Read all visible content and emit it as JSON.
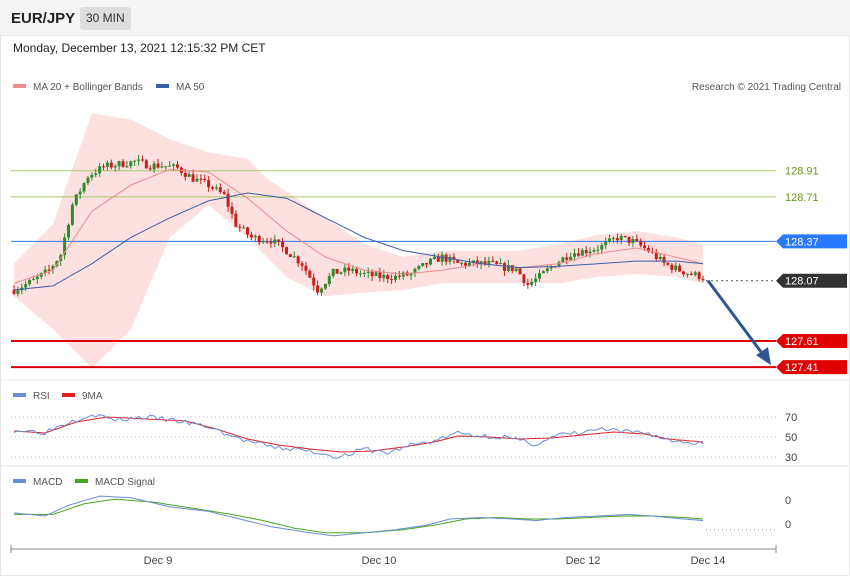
{
  "header": {
    "pair": "EUR/JPY",
    "timeframe": "30 MIN",
    "timestamp": "Monday, December 13, 2021 12:15:32 PM CET"
  },
  "colors": {
    "bb_fill": "#fde0e0",
    "ma20": "#f08a8a",
    "ma50": "#3b5ea8",
    "resistance_green": "#a6c86a",
    "pivot_blue": "#2979ff",
    "support_red": "#e00000",
    "last_price": "#333333",
    "arrow": "#2f5597",
    "candle_up": "#2e8b2e",
    "candle_down": "#c81e1e",
    "rsi": "#6b8bd6",
    "rsi_ma": "#e02020",
    "macd": "#6b8bd6",
    "macd_signal": "#4aa51c"
  },
  "chart_data": [
    {
      "type": "candlestick",
      "name": "price",
      "legend": [
        {
          "label": "MA 20 + Bollinger Bands",
          "color": "#f08a8a"
        },
        {
          "label": "MA 50",
          "color": "#3b5ea8"
        }
      ],
      "copyright": "Research © 2021 Trading Central",
      "ylim": [
        127.35,
        129.45
      ],
      "x_ticks": [
        "Dec 9",
        "Dec 10",
        "Dec 12",
        "Dec 14"
      ],
      "levels": [
        {
          "value": 128.91,
          "label": "128.91",
          "style": "resistance"
        },
        {
          "value": 128.71,
          "label": "128.71",
          "style": "resistance"
        },
        {
          "value": 128.37,
          "label": "128.37",
          "style": "pivot"
        },
        {
          "value": 128.07,
          "label": "128.07",
          "style": "last"
        },
        {
          "value": 127.61,
          "label": "127.61",
          "style": "support"
        },
        {
          "value": 127.41,
          "label": "127.41",
          "style": "support"
        }
      ],
      "close_keypoints": [
        [
          0,
          128.0
        ],
        [
          5,
          128.07
        ],
        [
          9,
          128.15
        ],
        [
          12,
          128.27
        ],
        [
          15,
          128.65
        ],
        [
          19,
          128.87
        ],
        [
          23,
          128.94
        ],
        [
          27,
          128.96
        ],
        [
          31,
          128.98
        ],
        [
          35,
          128.95
        ],
        [
          38,
          128.95
        ],
        [
          42,
          128.93
        ],
        [
          46,
          128.85
        ],
        [
          50,
          128.8
        ],
        [
          54,
          128.72
        ],
        [
          57,
          128.5
        ],
        [
          61,
          128.4
        ],
        [
          66,
          128.38
        ],
        [
          70,
          128.3
        ],
        [
          74,
          128.2
        ],
        [
          78,
          128.0
        ],
        [
          82,
          128.13
        ],
        [
          86,
          128.15
        ],
        [
          90,
          128.12
        ],
        [
          94,
          128.1
        ],
        [
          98,
          128.1
        ],
        [
          102,
          128.12
        ],
        [
          106,
          128.2
        ],
        [
          110,
          128.25
        ],
        [
          114,
          128.2
        ],
        [
          118,
          128.2
        ],
        [
          122,
          128.2
        ],
        [
          126,
          128.17
        ],
        [
          129,
          128.16
        ],
        [
          132,
          128.04
        ],
        [
          135,
          128.1
        ],
        [
          139,
          128.2
        ],
        [
          143,
          128.28
        ],
        [
          147,
          128.3
        ],
        [
          151,
          128.33
        ],
        [
          155,
          128.4
        ],
        [
          159,
          128.37
        ],
        [
          163,
          128.3
        ],
        [
          167,
          128.2
        ],
        [
          171,
          128.15
        ],
        [
          174,
          128.12
        ],
        [
          177,
          128.1
        ]
      ],
      "ma20_keypoints": [
        [
          0,
          128.05
        ],
        [
          10,
          128.15
        ],
        [
          20,
          128.6
        ],
        [
          30,
          128.8
        ],
        [
          40,
          128.92
        ],
        [
          50,
          128.9
        ],
        [
          60,
          128.7
        ],
        [
          70,
          128.45
        ],
        [
          80,
          128.25
        ],
        [
          90,
          128.15
        ],
        [
          100,
          128.12
        ],
        [
          110,
          128.15
        ],
        [
          120,
          128.2
        ],
        [
          130,
          128.17
        ],
        [
          140,
          128.2
        ],
        [
          150,
          128.28
        ],
        [
          160,
          128.32
        ],
        [
          170,
          128.25
        ],
        [
          177,
          128.2
        ]
      ],
      "ma50_keypoints": [
        [
          0,
          128.0
        ],
        [
          10,
          128.03
        ],
        [
          20,
          128.2
        ],
        [
          30,
          128.4
        ],
        [
          40,
          128.55
        ],
        [
          50,
          128.68
        ],
        [
          60,
          128.74
        ],
        [
          70,
          128.7
        ],
        [
          80,
          128.55
        ],
        [
          90,
          128.4
        ],
        [
          100,
          128.3
        ],
        [
          110,
          128.25
        ],
        [
          120,
          128.2
        ],
        [
          130,
          128.17
        ],
        [
          140,
          128.18
        ],
        [
          150,
          128.2
        ],
        [
          160,
          128.22
        ],
        [
          170,
          128.22
        ],
        [
          177,
          128.2
        ]
      ],
      "bb_upper_keypoints": [
        [
          0,
          128.2
        ],
        [
          10,
          128.5
        ],
        [
          20,
          129.35
        ],
        [
          30,
          129.3
        ],
        [
          40,
          129.15
        ],
        [
          50,
          129.05
        ],
        [
          60,
          129.0
        ],
        [
          65,
          128.85
        ],
        [
          70,
          128.75
        ],
        [
          80,
          128.55
        ],
        [
          90,
          128.35
        ],
        [
          100,
          128.25
        ],
        [
          110,
          128.3
        ],
        [
          120,
          128.3
        ],
        [
          130,
          128.3
        ],
        [
          140,
          128.35
        ],
        [
          150,
          128.42
        ],
        [
          160,
          128.45
        ],
        [
          170,
          128.4
        ],
        [
          177,
          128.35
        ]
      ],
      "bb_lower_keypoints": [
        [
          0,
          127.95
        ],
        [
          10,
          127.7
        ],
        [
          20,
          127.4
        ],
        [
          30,
          127.7
        ],
        [
          40,
          128.4
        ],
        [
          50,
          128.65
        ],
        [
          60,
          128.4
        ],
        [
          65,
          128.25
        ],
        [
          70,
          128.1
        ],
        [
          80,
          127.95
        ],
        [
          90,
          127.98
        ],
        [
          100,
          128.0
        ],
        [
          110,
          128.05
        ],
        [
          120,
          128.05
        ],
        [
          130,
          128.05
        ],
        [
          140,
          128.05
        ],
        [
          150,
          128.1
        ],
        [
          160,
          128.12
        ],
        [
          170,
          128.1
        ],
        [
          177,
          128.05
        ]
      ]
    },
    {
      "type": "line",
      "name": "RSI",
      "legend": [
        {
          "label": "RSI",
          "color": "#6b8bd6"
        },
        {
          "label": "9MA",
          "color": "#e02020"
        }
      ],
      "ylim": [
        25,
        80
      ],
      "y_ticks": [
        70,
        50,
        30
      ],
      "series": [
        {
          "name": "RSI",
          "keypoints": [
            [
              0,
              57
            ],
            [
              8,
              55
            ],
            [
              14,
              65
            ],
            [
              20,
              73
            ],
            [
              26,
              67
            ],
            [
              34,
              70
            ],
            [
              42,
              66
            ],
            [
              50,
              60
            ],
            [
              58,
              48
            ],
            [
              66,
              40
            ],
            [
              74,
              37
            ],
            [
              80,
              33
            ],
            [
              84,
              30
            ],
            [
              90,
              38
            ],
            [
              96,
              34
            ],
            [
              102,
              42
            ],
            [
              108,
              46
            ],
            [
              114,
              54
            ],
            [
              120,
              51
            ],
            [
              126,
              50
            ],
            [
              130,
              46
            ],
            [
              134,
              43
            ],
            [
              140,
              52
            ],
            [
              146,
              54
            ],
            [
              150,
              58
            ],
            [
              156,
              55
            ],
            [
              162,
              55
            ],
            [
              168,
              47
            ],
            [
              172,
              45
            ],
            [
              177,
              44
            ]
          ]
        },
        {
          "name": "9MA",
          "keypoints": [
            [
              0,
              56
            ],
            [
              8,
              54
            ],
            [
              16,
              65
            ],
            [
              24,
              70
            ],
            [
              34,
              68
            ],
            [
              44,
              66
            ],
            [
              52,
              58
            ],
            [
              60,
              48
            ],
            [
              68,
              42
            ],
            [
              76,
              38
            ],
            [
              84,
              35
            ],
            [
              92,
              36
            ],
            [
              100,
              40
            ],
            [
              108,
              45
            ],
            [
              114,
              51
            ],
            [
              122,
              50
            ],
            [
              130,
              48
            ],
            [
              138,
              49
            ],
            [
              146,
              52
            ],
            [
              154,
              55
            ],
            [
              162,
              53
            ],
            [
              168,
              48
            ],
            [
              177,
              45
            ]
          ]
        }
      ]
    },
    {
      "type": "line",
      "name": "MACD",
      "legend": [
        {
          "label": "MACD",
          "color": "#6b8bd6"
        },
        {
          "label": "MACD Signal",
          "color": "#4aa51c"
        }
      ],
      "ylim": [
        -0.14,
        0.22
      ],
      "y_ticks": [
        0,
        0
      ],
      "series": [
        {
          "name": "MACD",
          "keypoints": [
            [
              0,
              0.07
            ],
            [
              8,
              0.05
            ],
            [
              14,
              0.12
            ],
            [
              22,
              0.18
            ],
            [
              30,
              0.17
            ],
            [
              40,
              0.11
            ],
            [
              50,
              0.08
            ],
            [
              58,
              0.03
            ],
            [
              66,
              -0.02
            ],
            [
              76,
              -0.06
            ],
            [
              82,
              -0.08
            ],
            [
              90,
              -0.06
            ],
            [
              98,
              -0.04
            ],
            [
              106,
              -0.01
            ],
            [
              112,
              0.03
            ],
            [
              120,
              0.04
            ],
            [
              128,
              0.03
            ],
            [
              134,
              0.02
            ],
            [
              142,
              0.04
            ],
            [
              150,
              0.05
            ],
            [
              158,
              0.06
            ],
            [
              164,
              0.05
            ],
            [
              172,
              0.03
            ],
            [
              177,
              0.02
            ]
          ]
        },
        {
          "name": "MACD Signal",
          "keypoints": [
            [
              0,
              0.06
            ],
            [
              10,
              0.06
            ],
            [
              18,
              0.13
            ],
            [
              26,
              0.16
            ],
            [
              36,
              0.14
            ],
            [
              46,
              0.1
            ],
            [
              56,
              0.06
            ],
            [
              64,
              0.02
            ],
            [
              72,
              -0.03
            ],
            [
              80,
              -0.06
            ],
            [
              90,
              -0.06
            ],
            [
              100,
              -0.04
            ],
            [
              108,
              -0.01
            ],
            [
              116,
              0.03
            ],
            [
              124,
              0.04
            ],
            [
              132,
              0.03
            ],
            [
              140,
              0.03
            ],
            [
              148,
              0.04
            ],
            [
              156,
              0.05
            ],
            [
              164,
              0.05
            ],
            [
              172,
              0.04
            ],
            [
              177,
              0.03
            ]
          ]
        }
      ]
    }
  ]
}
